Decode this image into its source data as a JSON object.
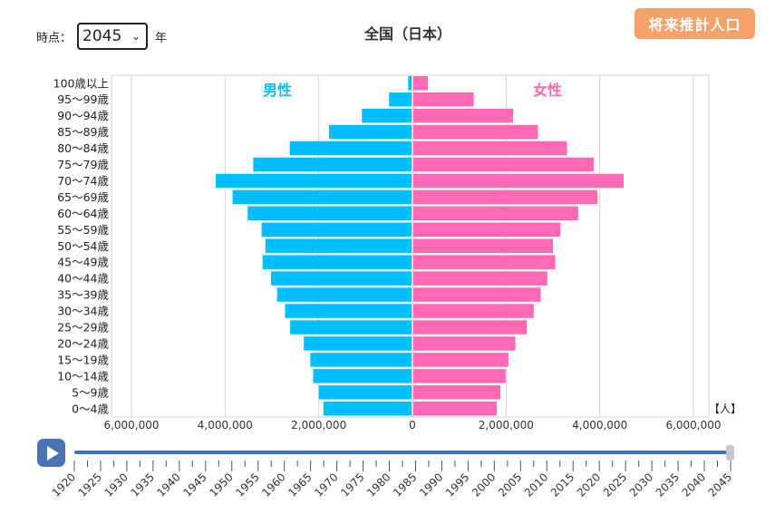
{
  "header": {
    "time_label": "時点：",
    "year_selected": "2045",
    "year_suffix": "年",
    "title": "全国（日本）",
    "projection_button": "将来推計人口"
  },
  "chart_data": {
    "type": "bar",
    "orientation": "horizontal-pyramid",
    "title": "全国（日本）",
    "unit_label": "【人】",
    "male_label": "男性",
    "female_label": "女性",
    "male_color": "#00bfff",
    "female_color": "#ff69b4",
    "xlim": [
      -6000000,
      6000000
    ],
    "x_ticks": [
      -6000000,
      -4000000,
      -2000000,
      0,
      2000000,
      4000000,
      6000000
    ],
    "x_tick_labels": [
      "6,000,000",
      "4,000,000",
      "2,000,000",
      "0",
      "2,000,000",
      "4,000,000",
      "6,000,000"
    ],
    "categories": [
      "100歳以上",
      "95～99歳",
      "90～94歳",
      "85～89歳",
      "80～84歳",
      "75～79歳",
      "70～74歳",
      "65～69歳",
      "60～64歳",
      "55～59歳",
      "50～54歳",
      "45～49歳",
      "40～44歳",
      "35～39歳",
      "30～34歳",
      "25～29歳",
      "20～24歳",
      "15～19歳",
      "10～14歳",
      "5～9歳",
      "0～4歳"
    ],
    "series": [
      {
        "name": "男性",
        "values": [
          90000,
          500000,
          1080000,
          1780000,
          2620000,
          3400000,
          4200000,
          3840000,
          3520000,
          3220000,
          3140000,
          3200000,
          3020000,
          2890000,
          2720000,
          2610000,
          2320000,
          2180000,
          2120000,
          2000000,
          1900000
        ]
      },
      {
        "name": "女性",
        "values": [
          330000,
          1310000,
          2150000,
          2680000,
          3300000,
          3870000,
          4510000,
          3950000,
          3540000,
          3160000,
          3000000,
          3050000,
          2880000,
          2740000,
          2590000,
          2440000,
          2200000,
          2050000,
          1990000,
          1880000,
          1800000
        ]
      }
    ],
    "grid": true
  },
  "timeline": {
    "years": [
      "1920",
      "1925",
      "1930",
      "1935",
      "1940",
      "1945",
      "1950",
      "1955",
      "1960",
      "1965",
      "1970",
      "1975",
      "1980",
      "1985",
      "1990",
      "1995",
      "2000",
      "2005",
      "2010",
      "2015",
      "2020",
      "2025",
      "2030",
      "2035",
      "2040",
      "2045"
    ],
    "current": "2045"
  },
  "colors": {
    "male": "#00bfff",
    "female": "#ff69b4",
    "button": "#f6a06a",
    "play": "#4a72b6",
    "slider": "#3f6fc6"
  }
}
